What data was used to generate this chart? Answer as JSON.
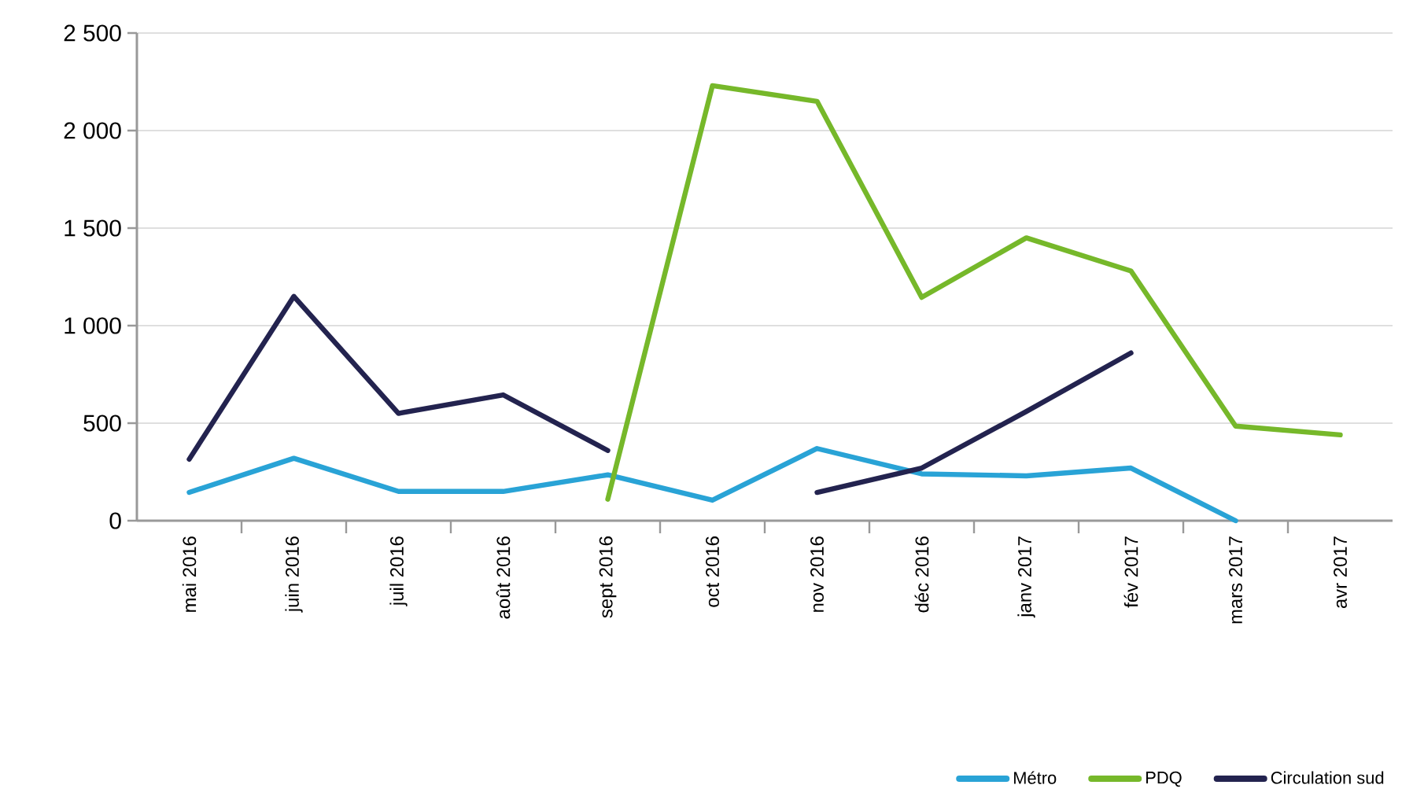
{
  "chart_data": {
    "type": "line",
    "categories": [
      "mai 2016",
      "juin 2016",
      "juil 2016",
      "août 2016",
      "sept 2016",
      "oct 2016",
      "nov 2016",
      "déc 2016",
      "janv 2017",
      "fév 2017",
      "mars 2017",
      "avr 2017"
    ],
    "series": [
      {
        "name": "Métro",
        "color": "#29a3d6",
        "values": [
          145,
          320,
          150,
          150,
          235,
          105,
          370,
          240,
          230,
          270,
          0,
          null
        ]
      },
      {
        "name": "PDQ",
        "color": "#76b82a",
        "values": [
          null,
          null,
          null,
          null,
          110,
          2230,
          2150,
          1145,
          1450,
          1280,
          485,
          440
        ]
      },
      {
        "name": "Circulation sud",
        "color": "#23234f",
        "values": [
          315,
          1150,
          550,
          645,
          360,
          null,
          145,
          270,
          560,
          860,
          null,
          null
        ]
      }
    ],
    "ylim": [
      0,
      2500
    ],
    "yticks": [
      0,
      500,
      {
        "value": 1000,
        "label": "1 000"
      },
      {
        "value": 1500,
        "label": "1 500"
      },
      {
        "value": 2000,
        "label": "2 000"
      },
      {
        "value": 2500,
        "label": "2 500"
      }
    ],
    "grid": "y",
    "legend": "bottom right",
    "marker": "none",
    "line_style": "solid"
  }
}
